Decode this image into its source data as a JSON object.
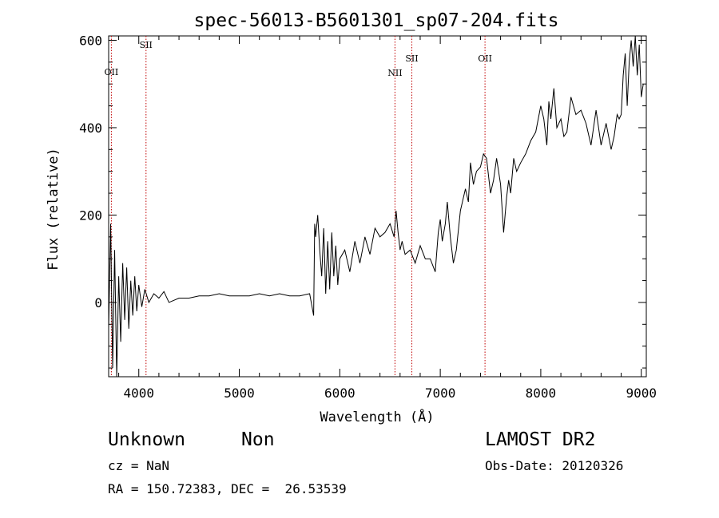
{
  "chart_data": {
    "type": "line",
    "title": "spec-56013-B5601301_sp07-204.fits",
    "xlabel": "Wavelength (Å)",
    "ylabel": "Flux (relative)",
    "xlim": [
      3700,
      9050
    ],
    "ylim": [
      -170,
      610
    ],
    "xticks": [
      4000,
      5000,
      6000,
      7000,
      8000,
      9000
    ],
    "yticks": [
      0,
      200,
      400,
      600
    ],
    "grid": false,
    "series": [
      {
        "x": [
          3700,
          3720,
          3740,
          3760,
          3780,
          3800,
          3820,
          3840,
          3860,
          3880,
          3900,
          3920,
          3940,
          3960,
          3980,
          4000,
          4030,
          4060,
          4100,
          4150,
          4200,
          4250,
          4300,
          4400,
          4500,
          4600,
          4700,
          4800,
          4900,
          5000,
          5100,
          5200,
          5300,
          5400,
          5500,
          5600,
          5700,
          5740,
          5750,
          5760,
          5780,
          5800,
          5820,
          5840,
          5860,
          5880,
          5900,
          5920,
          5940,
          5960,
          5980,
          6000,
          6050,
          6100,
          6150,
          6200,
          6250,
          6300,
          6350,
          6400,
          6450,
          6500,
          6540,
          6560,
          6580,
          6600,
          6620,
          6650,
          6700,
          6750,
          6800,
          6850,
          6900,
          6950,
          6980,
          7000,
          7020,
          7050,
          7070,
          7100,
          7130,
          7160,
          7200,
          7250,
          7280,
          7300,
          7330,
          7360,
          7400,
          7430,
          7460,
          7500,
          7530,
          7560,
          7600,
          7630,
          7660,
          7680,
          7700,
          7730,
          7760,
          7800,
          7850,
          7900,
          7950,
          8000,
          8030,
          8060,
          8080,
          8100,
          8130,
          8160,
          8200,
          8230,
          8260,
          8300,
          8350,
          8400,
          8450,
          8500,
          8550,
          8600,
          8650,
          8700,
          8730,
          8760,
          8780,
          8800,
          8820,
          8840,
          8860,
          8880,
          8900,
          8920,
          8940,
          8960,
          8980,
          9000,
          9020
        ],
        "y": [
          -60,
          180,
          -150,
          120,
          -170,
          60,
          -90,
          90,
          -40,
          80,
          -60,
          50,
          -30,
          60,
          -20,
          40,
          -10,
          30,
          0,
          20,
          10,
          25,
          0,
          10,
          10,
          15,
          15,
          20,
          15,
          15,
          15,
          20,
          15,
          20,
          15,
          15,
          20,
          -30,
          180,
          150,
          200,
          120,
          60,
          170,
          20,
          140,
          30,
          160,
          60,
          130,
          40,
          100,
          120,
          70,
          140,
          90,
          150,
          110,
          170,
          150,
          160,
          180,
          150,
          210,
          160,
          120,
          140,
          110,
          120,
          90,
          130,
          100,
          100,
          70,
          160,
          190,
          140,
          180,
          230,
          150,
          90,
          120,
          210,
          260,
          230,
          320,
          270,
          300,
          310,
          340,
          330,
          250,
          280,
          330,
          270,
          160,
          240,
          280,
          250,
          330,
          300,
          320,
          340,
          370,
          390,
          450,
          420,
          360,
          460,
          420,
          490,
          400,
          420,
          380,
          390,
          470,
          430,
          440,
          410,
          360,
          440,
          360,
          410,
          350,
          380,
          430,
          420,
          430,
          520,
          570,
          450,
          550,
          600,
          540,
          610,
          520,
          590,
          470,
          500
        ]
      }
    ],
    "annotations": [
      {
        "label": "OII",
        "wavelength": 3727
      },
      {
        "label": "SII",
        "wavelength": 4072
      },
      {
        "label": "NII",
        "wavelength": 6549
      },
      {
        "label": "SII",
        "wavelength": 6717
      },
      {
        "label": "OII",
        "wavelength": 7445
      }
    ]
  },
  "info": {
    "class": "Unknown",
    "subclass": "Non",
    "cz": "cz = NaN",
    "radec": "RA = 150.72383, DEC =  26.53539",
    "survey": "LAMOST DR2",
    "obsdate": "Obs-Date: 20120326"
  }
}
